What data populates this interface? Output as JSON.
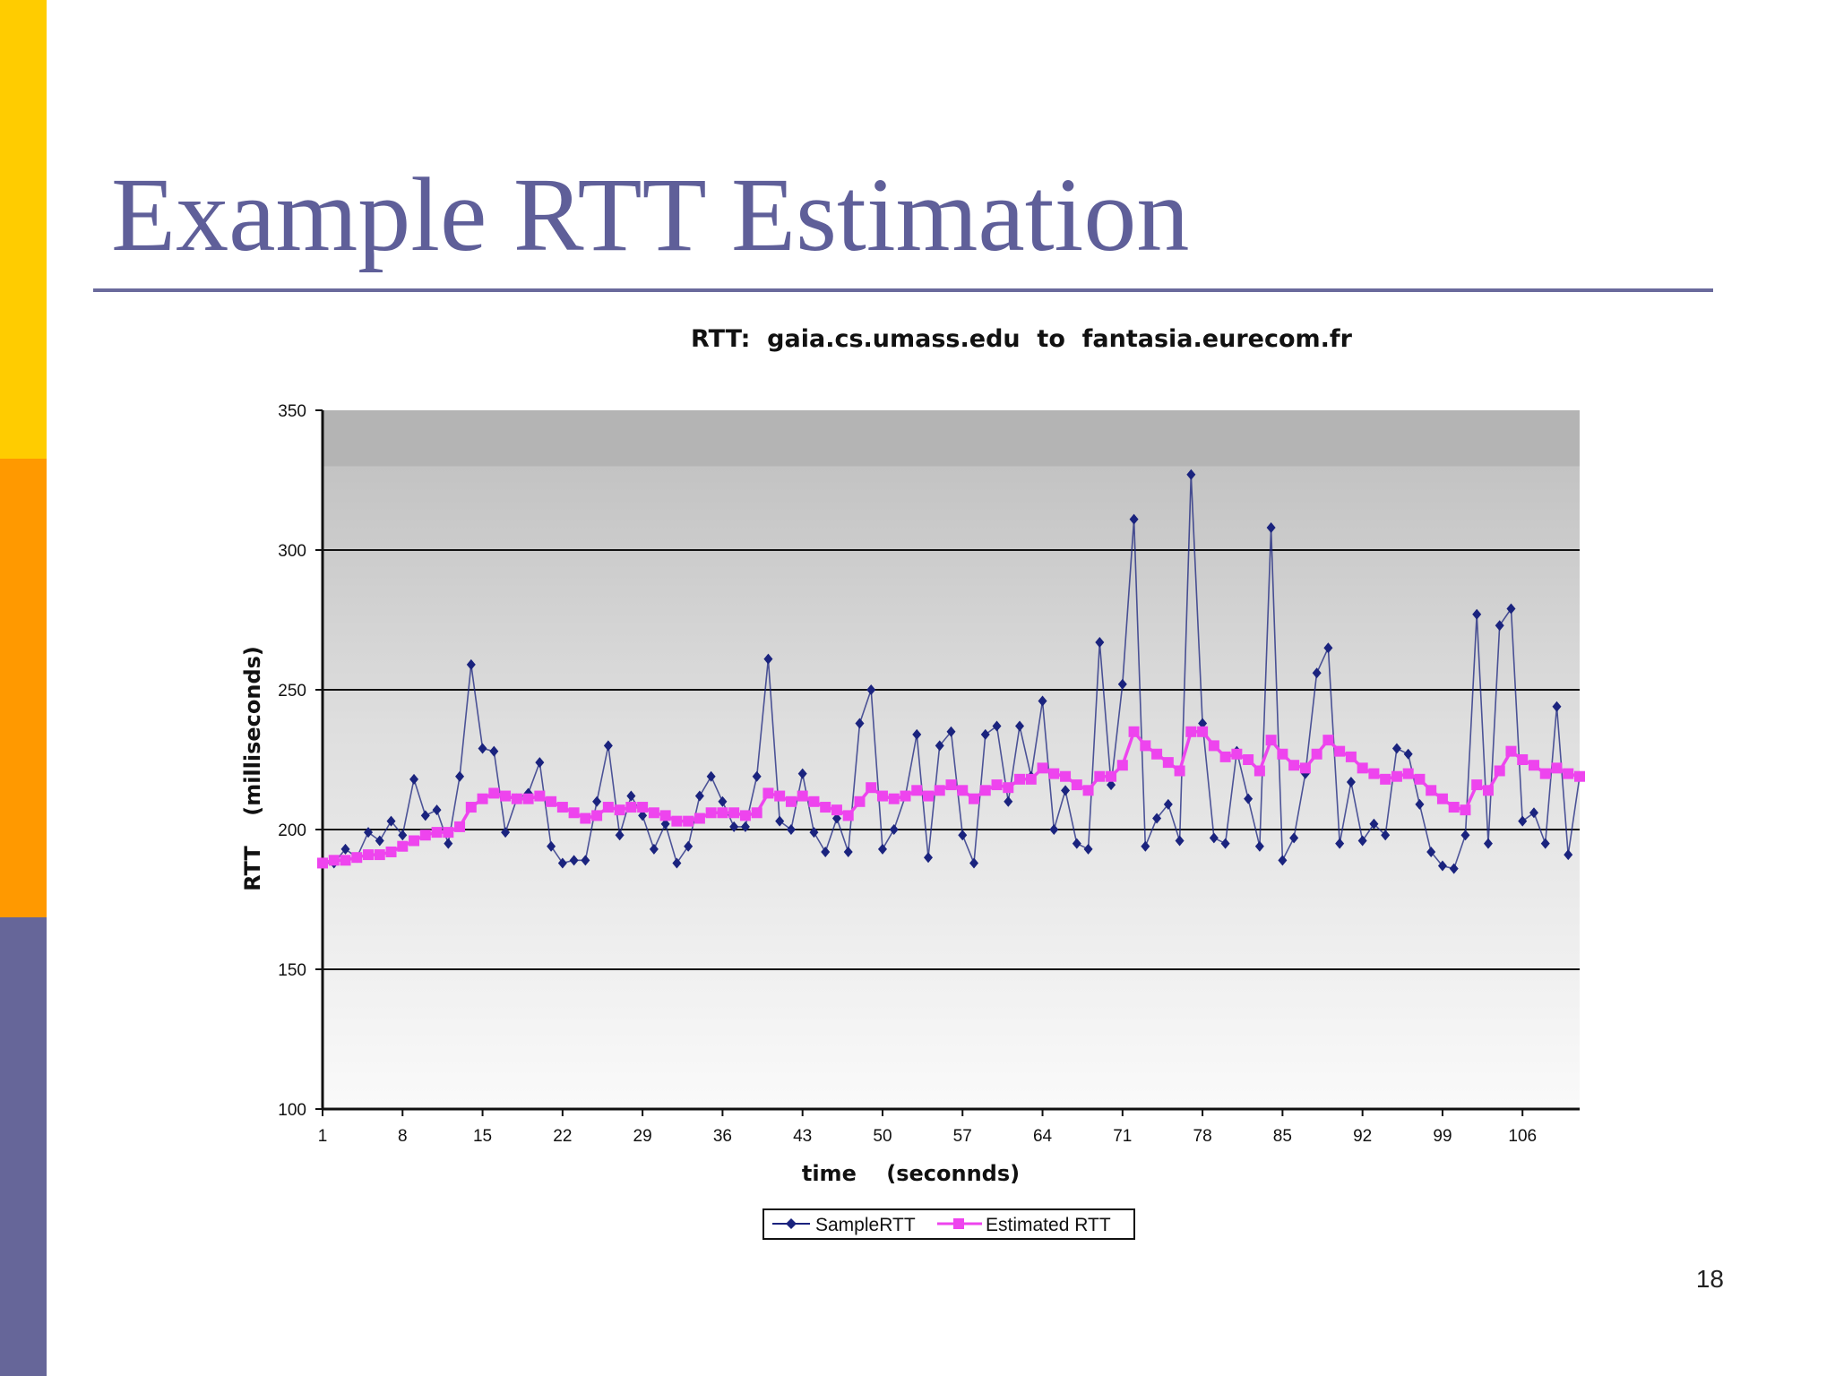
{
  "slide": {
    "title": "Example RTT Estimation",
    "page_number": "18"
  },
  "colors": {
    "sidebar": [
      "#ffcc00",
      "#ff9900",
      "#666699"
    ],
    "title": "#5f5f99",
    "sample_series": "#1a237e",
    "estimated_series": "#ee44ee"
  },
  "chart_data": {
    "type": "line",
    "title": "RTT:  gaia.cs.umass.edu  to  fantasia.eurecom.fr",
    "xlabel": "time    (seconnds)",
    "ylabel": "RTT    (milliseconds)",
    "ylim": [
      100,
      350
    ],
    "yticks": [
      100,
      150,
      200,
      250,
      300,
      350
    ],
    "xlim": [
      1,
      111
    ],
    "xticks": [
      1,
      8,
      15,
      22,
      29,
      36,
      43,
      50,
      57,
      64,
      71,
      78,
      85,
      92,
      99,
      106
    ],
    "grid": true,
    "legend_position": "bottom-center",
    "series": [
      {
        "name": "SampleRTT",
        "marker": "diamond",
        "color": "#1a237e",
        "x": [
          1,
          2,
          3,
          4,
          5,
          6,
          7,
          8,
          9,
          10,
          11,
          12,
          13,
          14,
          15,
          16,
          17,
          18,
          19,
          20,
          21,
          22,
          23,
          24,
          25,
          26,
          27,
          28,
          29,
          30,
          31,
          32,
          33,
          34,
          35,
          36,
          37,
          38,
          39,
          40,
          41,
          42,
          43,
          44,
          45,
          46,
          47,
          48,
          49,
          50,
          51,
          52,
          53,
          54,
          55,
          56,
          57,
          58,
          59,
          60,
          61,
          62,
          63,
          64,
          65,
          66,
          67,
          68,
          69,
          70,
          71,
          72,
          73,
          74,
          75,
          76,
          77,
          78,
          79,
          80,
          81,
          82,
          83,
          84,
          85,
          86,
          87,
          88,
          89,
          90,
          91,
          92,
          93,
          94,
          95,
          96,
          97,
          98,
          99,
          100,
          101,
          102,
          103,
          104,
          105,
          106,
          107,
          108,
          109,
          110,
          111
        ],
        "values": [
          188,
          188,
          193,
          190,
          199,
          196,
          203,
          198,
          218,
          205,
          207,
          195,
          219,
          259,
          229,
          228,
          199,
          211,
          213,
          224,
          194,
          188,
          189,
          189,
          210,
          230,
          198,
          212,
          205,
          193,
          202,
          188,
          194,
          212,
          219,
          210,
          201,
          201,
          219,
          261,
          203,
          200,
          220,
          199,
          192,
          204,
          192,
          238,
          250,
          193,
          200,
          212,
          234,
          190,
          230,
          235,
          198,
          188,
          234,
          237,
          210,
          237,
          219,
          246,
          200,
          214,
          195,
          193,
          267,
          216,
          252,
          311,
          194,
          204,
          209,
          196,
          327,
          238,
          197,
          195,
          228,
          211,
          194,
          308,
          189,
          197,
          220,
          256,
          265,
          195,
          217,
          196,
          202,
          198,
          229,
          227,
          209,
          192,
          187,
          186,
          198,
          277,
          195,
          273,
          279,
          203,
          206,
          195,
          244,
          191,
          219
        ]
      },
      {
        "name": "Estimated RTT",
        "marker": "square",
        "color": "#ee44ee",
        "x": [
          1,
          2,
          3,
          4,
          5,
          6,
          7,
          8,
          9,
          10,
          11,
          12,
          13,
          14,
          15,
          16,
          17,
          18,
          19,
          20,
          21,
          22,
          23,
          24,
          25,
          26,
          27,
          28,
          29,
          30,
          31,
          32,
          33,
          34,
          35,
          36,
          37,
          38,
          39,
          40,
          41,
          42,
          43,
          44,
          45,
          46,
          47,
          48,
          49,
          50,
          51,
          52,
          53,
          54,
          55,
          56,
          57,
          58,
          59,
          60,
          61,
          62,
          63,
          64,
          65,
          66,
          67,
          68,
          69,
          70,
          71,
          72,
          73,
          74,
          75,
          76,
          77,
          78,
          79,
          80,
          81,
          82,
          83,
          84,
          85,
          86,
          87,
          88,
          89,
          90,
          91,
          92,
          93,
          94,
          95,
          96,
          97,
          98,
          99,
          100,
          101,
          102,
          103,
          104,
          105,
          106,
          107,
          108,
          109,
          110,
          111
        ],
        "values": [
          188,
          189,
          189,
          190,
          191,
          191,
          192,
          194,
          196,
          198,
          199,
          199,
          201,
          208,
          211,
          213,
          212,
          211,
          211,
          212,
          210,
          208,
          206,
          204,
          205,
          208,
          207,
          208,
          208,
          206,
          205,
          203,
          203,
          204,
          206,
          206,
          206,
          205,
          206,
          213,
          212,
          210,
          212,
          210,
          208,
          207,
          205,
          210,
          215,
          212,
          211,
          212,
          214,
          212,
          214,
          216,
          214,
          211,
          214,
          216,
          215,
          218,
          218,
          222,
          220,
          219,
          216,
          214,
          219,
          219,
          223,
          235,
          230,
          227,
          224,
          221,
          235,
          235,
          230,
          226,
          227,
          225,
          221,
          232,
          227,
          223,
          222,
          227,
          232,
          228,
          226,
          222,
          220,
          218,
          219,
          220,
          218,
          214,
          211,
          208,
          207,
          216,
          214,
          221,
          228,
          225,
          223,
          220,
          222,
          220,
          219
        ]
      }
    ]
  }
}
